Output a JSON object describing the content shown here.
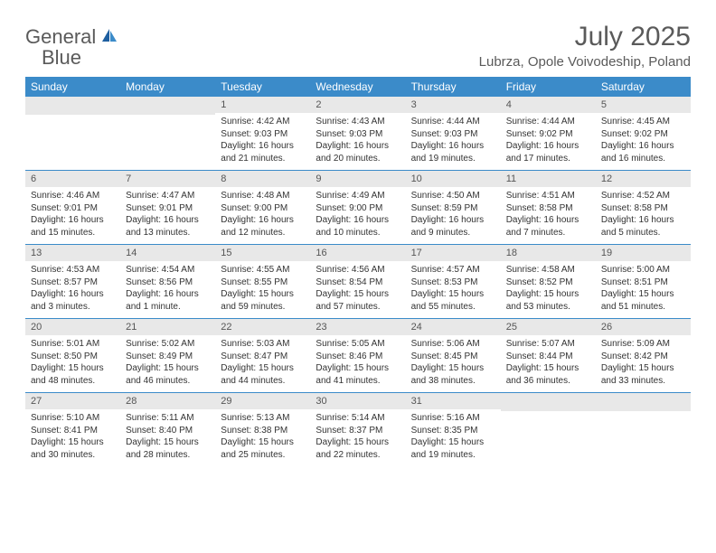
{
  "logo": {
    "word1": "General",
    "word2": "Blue"
  },
  "title": "July 2025",
  "location": "Lubrza, Opole Voivodeship, Poland",
  "colors": {
    "header_bg": "#3b8bc9",
    "bar_bg": "#e8e8e8",
    "text": "#333333",
    "muted": "#5a5a5a",
    "brand_blue": "#2f7fc1"
  },
  "dayNames": [
    "Sunday",
    "Monday",
    "Tuesday",
    "Wednesday",
    "Thursday",
    "Friday",
    "Saturday"
  ],
  "weeks": [
    [
      {
        "n": "",
        "sr": "",
        "ss": "",
        "dl1": "",
        "dl2": ""
      },
      {
        "n": "",
        "sr": "",
        "ss": "",
        "dl1": "",
        "dl2": ""
      },
      {
        "n": "1",
        "sr": "Sunrise: 4:42 AM",
        "ss": "Sunset: 9:03 PM",
        "dl1": "Daylight: 16 hours",
        "dl2": "and 21 minutes."
      },
      {
        "n": "2",
        "sr": "Sunrise: 4:43 AM",
        "ss": "Sunset: 9:03 PM",
        "dl1": "Daylight: 16 hours",
        "dl2": "and 20 minutes."
      },
      {
        "n": "3",
        "sr": "Sunrise: 4:44 AM",
        "ss": "Sunset: 9:03 PM",
        "dl1": "Daylight: 16 hours",
        "dl2": "and 19 minutes."
      },
      {
        "n": "4",
        "sr": "Sunrise: 4:44 AM",
        "ss": "Sunset: 9:02 PM",
        "dl1": "Daylight: 16 hours",
        "dl2": "and 17 minutes."
      },
      {
        "n": "5",
        "sr": "Sunrise: 4:45 AM",
        "ss": "Sunset: 9:02 PM",
        "dl1": "Daylight: 16 hours",
        "dl2": "and 16 minutes."
      }
    ],
    [
      {
        "n": "6",
        "sr": "Sunrise: 4:46 AM",
        "ss": "Sunset: 9:01 PM",
        "dl1": "Daylight: 16 hours",
        "dl2": "and 15 minutes."
      },
      {
        "n": "7",
        "sr": "Sunrise: 4:47 AM",
        "ss": "Sunset: 9:01 PM",
        "dl1": "Daylight: 16 hours",
        "dl2": "and 13 minutes."
      },
      {
        "n": "8",
        "sr": "Sunrise: 4:48 AM",
        "ss": "Sunset: 9:00 PM",
        "dl1": "Daylight: 16 hours",
        "dl2": "and 12 minutes."
      },
      {
        "n": "9",
        "sr": "Sunrise: 4:49 AM",
        "ss": "Sunset: 9:00 PM",
        "dl1": "Daylight: 16 hours",
        "dl2": "and 10 minutes."
      },
      {
        "n": "10",
        "sr": "Sunrise: 4:50 AM",
        "ss": "Sunset: 8:59 PM",
        "dl1": "Daylight: 16 hours",
        "dl2": "and 9 minutes."
      },
      {
        "n": "11",
        "sr": "Sunrise: 4:51 AM",
        "ss": "Sunset: 8:58 PM",
        "dl1": "Daylight: 16 hours",
        "dl2": "and 7 minutes."
      },
      {
        "n": "12",
        "sr": "Sunrise: 4:52 AM",
        "ss": "Sunset: 8:58 PM",
        "dl1": "Daylight: 16 hours",
        "dl2": "and 5 minutes."
      }
    ],
    [
      {
        "n": "13",
        "sr": "Sunrise: 4:53 AM",
        "ss": "Sunset: 8:57 PM",
        "dl1": "Daylight: 16 hours",
        "dl2": "and 3 minutes."
      },
      {
        "n": "14",
        "sr": "Sunrise: 4:54 AM",
        "ss": "Sunset: 8:56 PM",
        "dl1": "Daylight: 16 hours",
        "dl2": "and 1 minute."
      },
      {
        "n": "15",
        "sr": "Sunrise: 4:55 AM",
        "ss": "Sunset: 8:55 PM",
        "dl1": "Daylight: 15 hours",
        "dl2": "and 59 minutes."
      },
      {
        "n": "16",
        "sr": "Sunrise: 4:56 AM",
        "ss": "Sunset: 8:54 PM",
        "dl1": "Daylight: 15 hours",
        "dl2": "and 57 minutes."
      },
      {
        "n": "17",
        "sr": "Sunrise: 4:57 AM",
        "ss": "Sunset: 8:53 PM",
        "dl1": "Daylight: 15 hours",
        "dl2": "and 55 minutes."
      },
      {
        "n": "18",
        "sr": "Sunrise: 4:58 AM",
        "ss": "Sunset: 8:52 PM",
        "dl1": "Daylight: 15 hours",
        "dl2": "and 53 minutes."
      },
      {
        "n": "19",
        "sr": "Sunrise: 5:00 AM",
        "ss": "Sunset: 8:51 PM",
        "dl1": "Daylight: 15 hours",
        "dl2": "and 51 minutes."
      }
    ],
    [
      {
        "n": "20",
        "sr": "Sunrise: 5:01 AM",
        "ss": "Sunset: 8:50 PM",
        "dl1": "Daylight: 15 hours",
        "dl2": "and 48 minutes."
      },
      {
        "n": "21",
        "sr": "Sunrise: 5:02 AM",
        "ss": "Sunset: 8:49 PM",
        "dl1": "Daylight: 15 hours",
        "dl2": "and 46 minutes."
      },
      {
        "n": "22",
        "sr": "Sunrise: 5:03 AM",
        "ss": "Sunset: 8:47 PM",
        "dl1": "Daylight: 15 hours",
        "dl2": "and 44 minutes."
      },
      {
        "n": "23",
        "sr": "Sunrise: 5:05 AM",
        "ss": "Sunset: 8:46 PM",
        "dl1": "Daylight: 15 hours",
        "dl2": "and 41 minutes."
      },
      {
        "n": "24",
        "sr": "Sunrise: 5:06 AM",
        "ss": "Sunset: 8:45 PM",
        "dl1": "Daylight: 15 hours",
        "dl2": "and 38 minutes."
      },
      {
        "n": "25",
        "sr": "Sunrise: 5:07 AM",
        "ss": "Sunset: 8:44 PM",
        "dl1": "Daylight: 15 hours",
        "dl2": "and 36 minutes."
      },
      {
        "n": "26",
        "sr": "Sunrise: 5:09 AM",
        "ss": "Sunset: 8:42 PM",
        "dl1": "Daylight: 15 hours",
        "dl2": "and 33 minutes."
      }
    ],
    [
      {
        "n": "27",
        "sr": "Sunrise: 5:10 AM",
        "ss": "Sunset: 8:41 PM",
        "dl1": "Daylight: 15 hours",
        "dl2": "and 30 minutes."
      },
      {
        "n": "28",
        "sr": "Sunrise: 5:11 AM",
        "ss": "Sunset: 8:40 PM",
        "dl1": "Daylight: 15 hours",
        "dl2": "and 28 minutes."
      },
      {
        "n": "29",
        "sr": "Sunrise: 5:13 AM",
        "ss": "Sunset: 8:38 PM",
        "dl1": "Daylight: 15 hours",
        "dl2": "and 25 minutes."
      },
      {
        "n": "30",
        "sr": "Sunrise: 5:14 AM",
        "ss": "Sunset: 8:37 PM",
        "dl1": "Daylight: 15 hours",
        "dl2": "and 22 minutes."
      },
      {
        "n": "31",
        "sr": "Sunrise: 5:16 AM",
        "ss": "Sunset: 8:35 PM",
        "dl1": "Daylight: 15 hours",
        "dl2": "and 19 minutes."
      },
      {
        "n": "",
        "sr": "",
        "ss": "",
        "dl1": "",
        "dl2": ""
      },
      {
        "n": "",
        "sr": "",
        "ss": "",
        "dl1": "",
        "dl2": ""
      }
    ]
  ]
}
